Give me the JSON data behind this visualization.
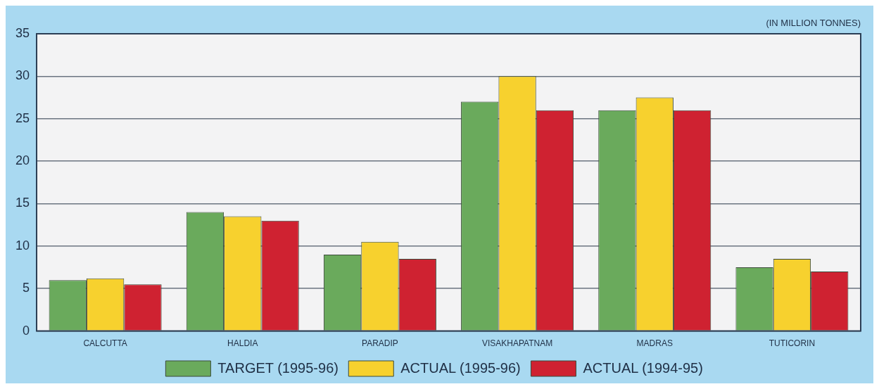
{
  "chart_data": {
    "type": "bar",
    "ylabel": "(IN MILLION TONNES)",
    "categories": [
      "CALCUTTA",
      "HALDIA",
      "PARADIP",
      "VISAKHAPATNAM",
      "MADRAS",
      "TUTICORIN"
    ],
    "series": [
      {
        "name": "TARGET (1995-96)",
        "color": "#6aaa5c",
        "values": [
          6,
          14,
          9,
          27,
          26,
          7.5
        ]
      },
      {
        "name": "ACTUAL (1995-96)",
        "color": "#f7d12e",
        "values": [
          6.2,
          13.5,
          10.5,
          30,
          27.5,
          8.5
        ]
      },
      {
        "name": "ACTUAL (1994-95)",
        "color": "#cf2231",
        "values": [
          5.5,
          13,
          8.5,
          26,
          26,
          7
        ]
      }
    ],
    "ylim": [
      0,
      35
    ],
    "yticks": [
      0,
      5,
      10,
      15,
      20,
      25,
      30,
      35
    ],
    "grid": "y",
    "legend": "bottom"
  }
}
